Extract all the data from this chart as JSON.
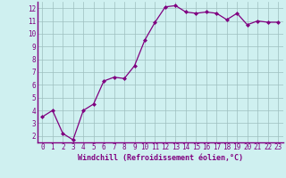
{
  "x": [
    0,
    1,
    2,
    3,
    4,
    5,
    6,
    7,
    8,
    9,
    10,
    11,
    12,
    13,
    14,
    15,
    16,
    17,
    18,
    19,
    20,
    21,
    22,
    23
  ],
  "y": [
    3.5,
    4.0,
    2.2,
    1.7,
    4.0,
    4.5,
    6.3,
    6.6,
    6.5,
    7.5,
    9.5,
    10.9,
    12.1,
    12.2,
    11.7,
    11.6,
    11.7,
    11.6,
    11.1,
    11.6,
    10.7,
    11.0,
    10.9,
    10.9
  ],
  "xlim": [
    -0.5,
    23.5
  ],
  "ylim": [
    1.5,
    12.5
  ],
  "yticks": [
    2,
    3,
    4,
    5,
    6,
    7,
    8,
    9,
    10,
    11,
    12
  ],
  "xticks": [
    0,
    1,
    2,
    3,
    4,
    5,
    6,
    7,
    8,
    9,
    10,
    11,
    12,
    13,
    14,
    15,
    16,
    17,
    18,
    19,
    20,
    21,
    22,
    23
  ],
  "xlabel": "Windchill (Refroidissement éolien,°C)",
  "line_color": "#800080",
  "marker": "D",
  "marker_size": 2.0,
  "line_width": 0.9,
  "bg_color": "#cff0f0",
  "grid_color": "#9dbfbf",
  "axis_label_color": "#800080",
  "tick_color": "#800080",
  "xlabel_fontsize": 6.0,
  "tick_fontsize": 5.5
}
